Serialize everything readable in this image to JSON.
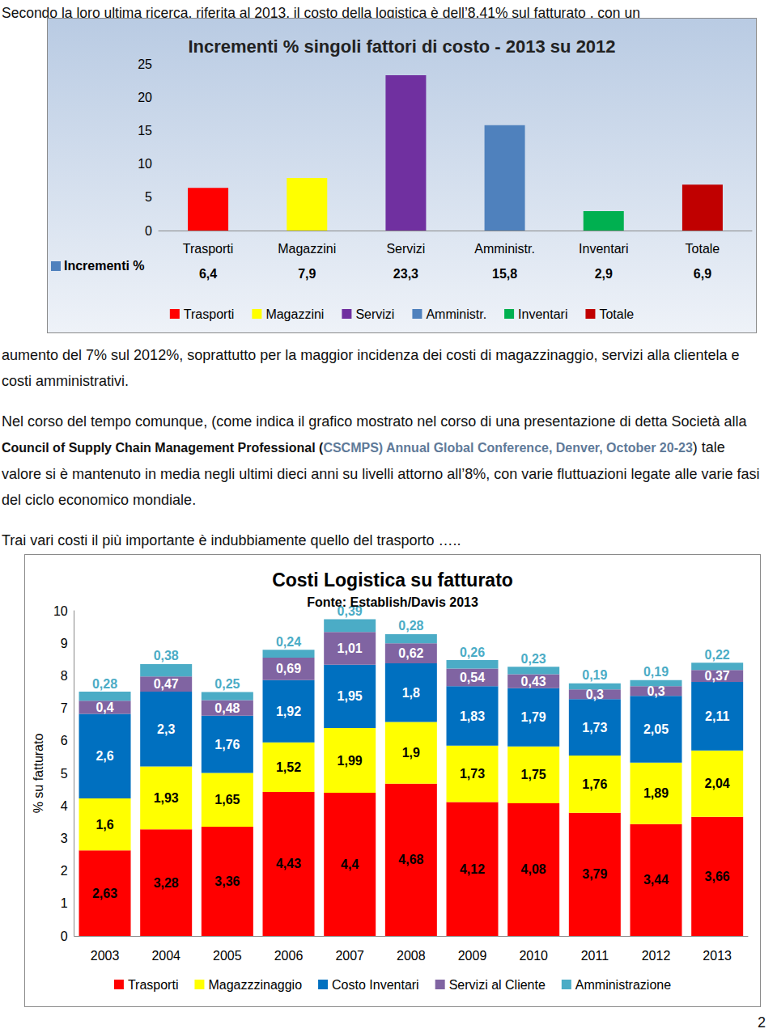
{
  "paragraphs": [
    [
      {
        "text": "Secondo la loro ultima ricerca, riferita al 2013, il costo della logistica è dell’8,41% sul fatturato , con un",
        "style": "normal"
      }
    ],
    [
      {
        "text": "aumento del 7% sul 2012%, soprattutto per la maggior incidenza dei costi di magazzinaggio, servizi alla clientela e costi amministrativi.",
        "style": "normal"
      }
    ],
    [
      {
        "text": "Nel corso del tempo comunque, (come indica il grafico  mostrato nel corso di una presentazione di detta Società  alla ",
        "style": "normal"
      },
      {
        "text": "Council of Supply Chain Management Professional (",
        "style": "bold"
      },
      {
        "text": "CSCMPS) Annual Global Conference, Denver, October 20-23",
        "style": "bold-blue"
      },
      {
        "text": ") tale valore si è mantenuto in media negli ultimi dieci anni  su livelli  attorno all’8%, con varie fluttuazioni legate alle varie fasi del ciclo economico mondiale.",
        "style": "normal"
      }
    ],
    [
      {
        "text": "Trai vari costi il più importante è indubbiamente  quello del trasporto …..",
        "style": "normal"
      }
    ]
  ],
  "chart_data": [
    {
      "type": "bar",
      "title": "Incrementi % singoli fattori di costo - 2013 su 2012",
      "categories": [
        "Trasporti",
        "Magazzini",
        "Servizi",
        "Amministr.",
        "Inventari",
        "Totale"
      ],
      "series": [
        {
          "name": "Incrementi %",
          "color": "#4f81bd",
          "values": [
            6.4,
            7.9,
            23.3,
            15.8,
            2.9,
            6.9
          ],
          "value_labels": [
            "6,4",
            "7,9",
            "23,3",
            "15,8",
            "2,9",
            "6,9"
          ],
          "colors": [
            "#ff0000",
            "#ffff00",
            "#7030a0",
            "#4f81bd",
            "#00b050",
            "#c00000"
          ]
        }
      ],
      "ylim": [
        0,
        25
      ],
      "yticks": [
        0,
        5,
        10,
        15,
        20,
        25
      ],
      "grid": false,
      "legend": "bottom"
    },
    {
      "type": "bar",
      "title": "Costi Logistica su fatturato",
      "subtitle": "Fonte: Establish/Davis 2013",
      "y_label": "% su fatturato",
      "categories": [
        "2003",
        "2004",
        "2005",
        "2006",
        "2007",
        "2008",
        "2009",
        "2010",
        "2011",
        "2012",
        "2013"
      ],
      "series": [
        {
          "name": "Trasporti",
          "color": "#ff0000",
          "values": [
            2.63,
            3.28,
            3.36,
            4.43,
            4.4,
            4.68,
            4.12,
            4.08,
            3.79,
            3.44,
            3.66
          ],
          "value_labels": [
            "2,63",
            "3,28",
            "3,36",
            "4,43",
            "4,4",
            "4,68",
            "4,12",
            "4,08",
            "3,79",
            "3,44",
            "3,66"
          ]
        },
        {
          "name": "Magazzzinaggio",
          "color": "#ffff00",
          "values": [
            1.6,
            1.93,
            1.65,
            1.52,
            1.99,
            1.9,
            1.73,
            1.75,
            1.76,
            1.89,
            2.04
          ],
          "value_labels": [
            "1,6",
            "1,93",
            "1,65",
            "1,52",
            "1,99",
            "1,9",
            "1,73",
            "1,75",
            "1,76",
            "1,89",
            "2,04"
          ]
        },
        {
          "name": "Costo Inventari",
          "color": "#0070c0",
          "values": [
            2.6,
            2.3,
            1.76,
            1.92,
            1.95,
            1.8,
            1.83,
            1.79,
            1.73,
            2.05,
            2.11
          ],
          "value_labels": [
            "2,6",
            "2,3",
            "1,76",
            "1,92",
            "1,95",
            "1,8",
            "1,83",
            "1,79",
            "1,73",
            "2,05",
            "2,11"
          ]
        },
        {
          "name": "Servizi al Cliente",
          "color": "#8064a2",
          "values": [
            0.4,
            0.47,
            0.48,
            0.69,
            1.01,
            0.62,
            0.54,
            0.43,
            0.3,
            0.3,
            0.37
          ],
          "value_labels": [
            "0,4",
            "0,47",
            "0,48",
            "0,69",
            "1,01",
            "0,62",
            "0,54",
            "0,43",
            "0,3",
            "0,3",
            "0,37"
          ]
        },
        {
          "name": "Amministrazione",
          "color": "#4bacc6",
          "values": [
            0.28,
            0.38,
            0.25,
            0.24,
            0.39,
            0.28,
            0.26,
            0.23,
            0.19,
            0.19,
            0.22
          ],
          "value_labels": [
            "0,28",
            "0,38",
            "0,25",
            "0,24",
            "0,39",
            "0,28",
            "0,26",
            "0,23",
            "0,19",
            "0,19",
            "0,22"
          ]
        }
      ],
      "ylim": [
        0,
        10
      ],
      "yticks": [
        0,
        1,
        2,
        3,
        4,
        5,
        6,
        7,
        8,
        9,
        10
      ],
      "stacked": true,
      "data_labels": true,
      "grid": false,
      "legend": "bottom"
    }
  ],
  "page_number": "2"
}
